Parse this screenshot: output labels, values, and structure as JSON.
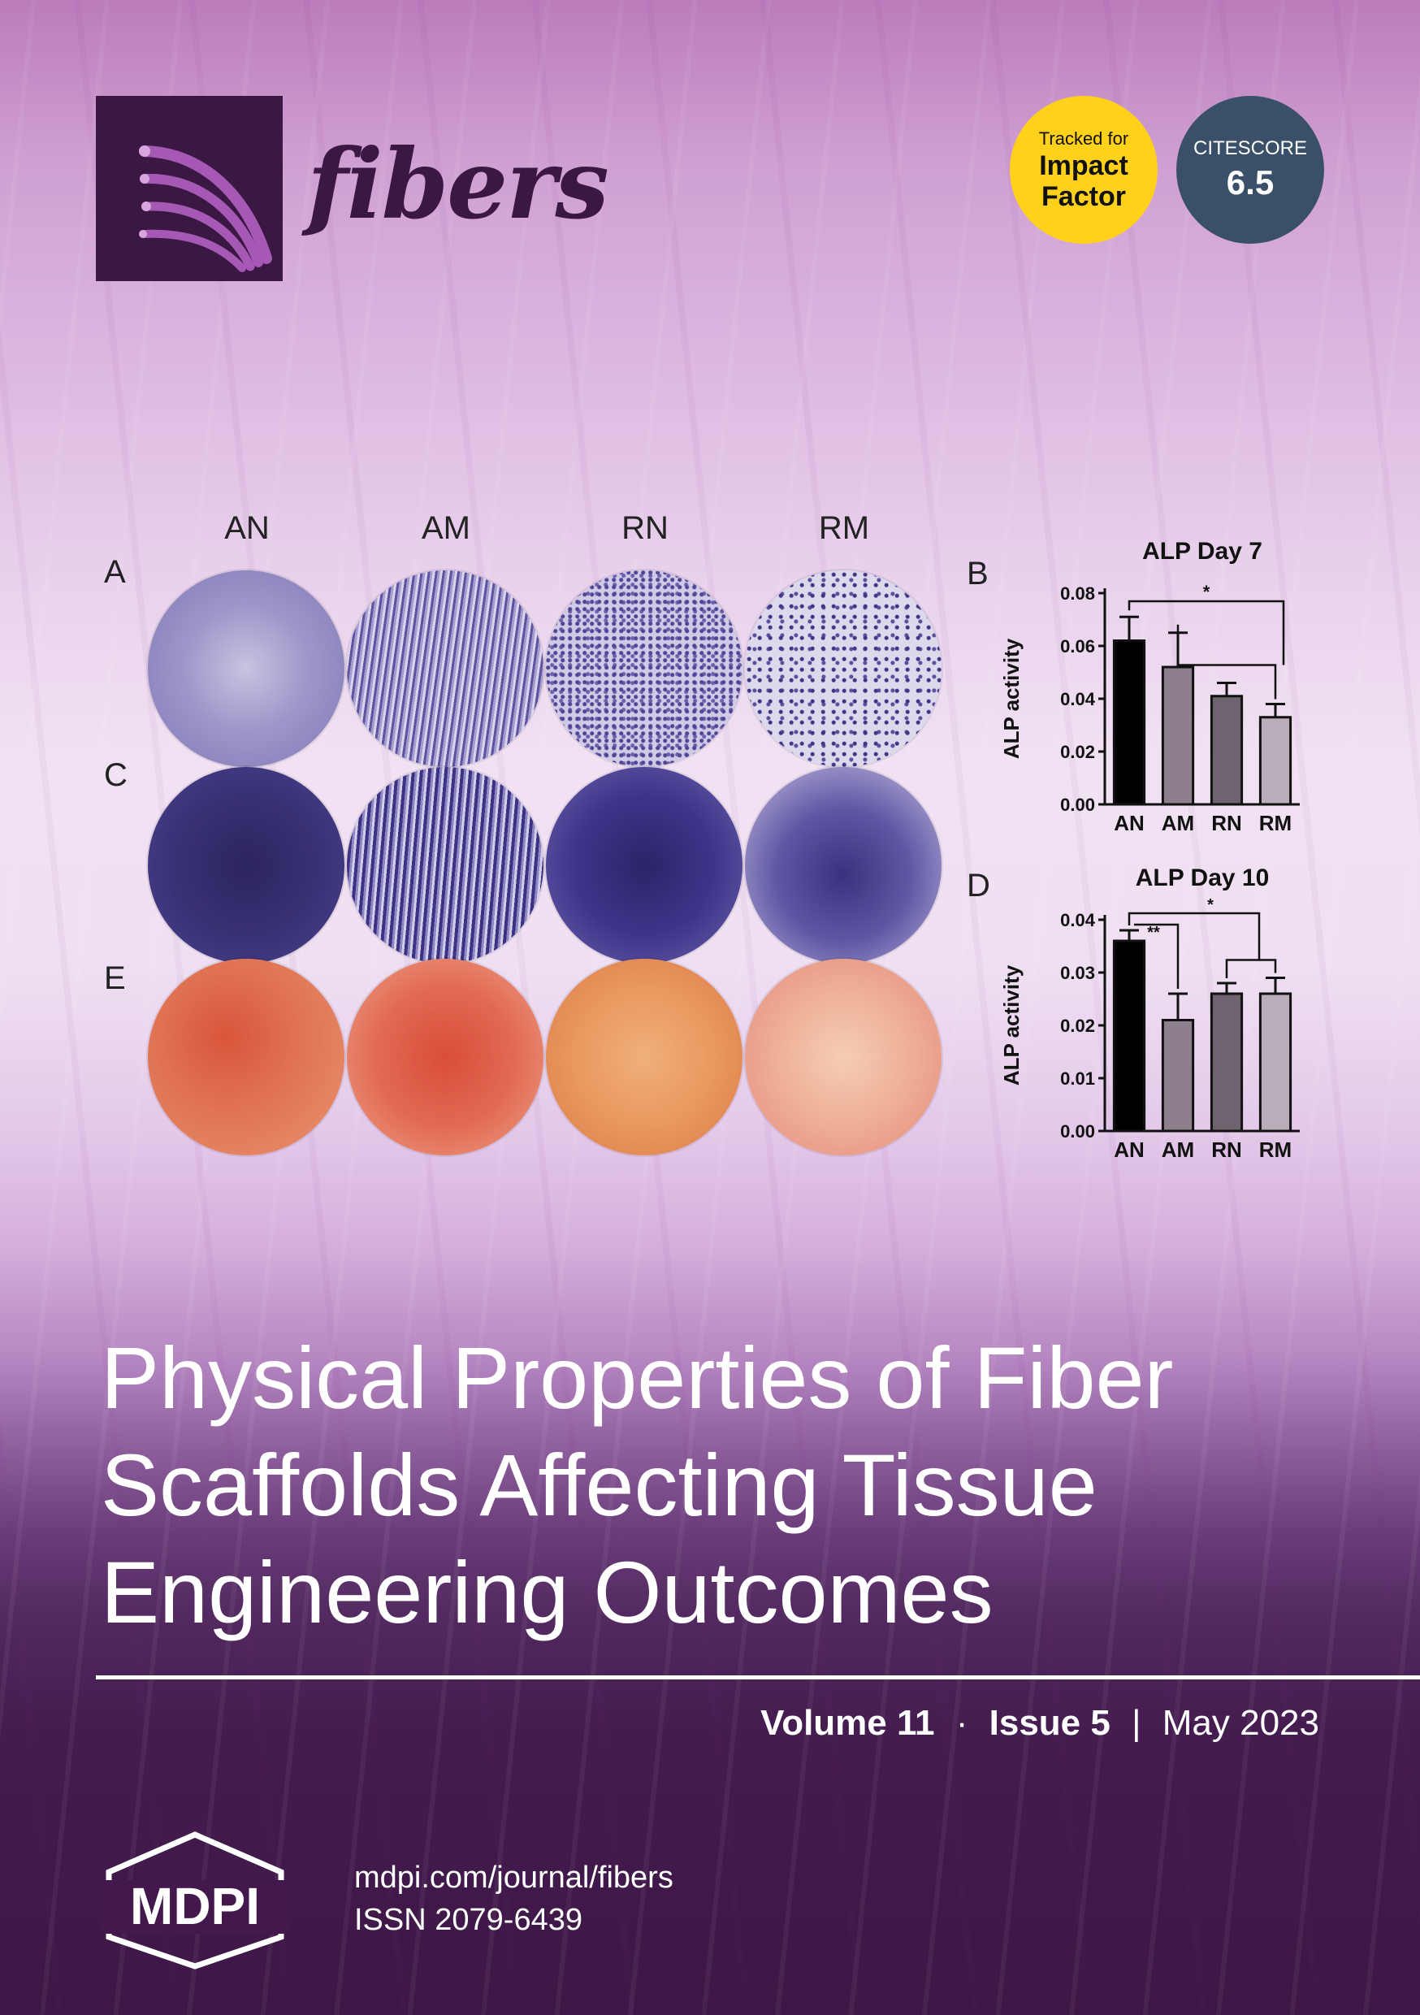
{
  "journal": {
    "name": "fibers",
    "badges": {
      "impact_line1": "Tracked for",
      "impact_line2": "Impact",
      "impact_line3": "Factor",
      "citescore_label": "CITESCORE",
      "citescore_value": "6.5"
    }
  },
  "figure": {
    "panel_letters": [
      "A",
      "B",
      "C",
      "D",
      "E"
    ],
    "column_labels": [
      "AN",
      "AM",
      "RN",
      "RM"
    ]
  },
  "chart_data": [
    {
      "type": "bar",
      "title": "ALP Day 7",
      "ylabel": "ALP activity",
      "categories": [
        "AN",
        "AM",
        "RN",
        "RM"
      ],
      "values": [
        0.062,
        0.052,
        0.041,
        0.033
      ],
      "errors": [
        0.009,
        0.013,
        0.005,
        0.005
      ],
      "ylim": [
        0,
        0.08
      ],
      "yticks": [
        "0.00",
        "0.02",
        "0.04",
        "0.06",
        "0.08"
      ],
      "significance": [
        "*"
      ],
      "colors": [
        "#000000",
        "#8e7f8d",
        "#6e6470",
        "#b9adba"
      ]
    },
    {
      "type": "bar",
      "title": "ALP Day 10",
      "ylabel": "ALP activity",
      "categories": [
        "AN",
        "AM",
        "RN",
        "RM"
      ],
      "values": [
        0.036,
        0.021,
        0.026,
        0.026
      ],
      "errors": [
        0.002,
        0.005,
        0.002,
        0.003
      ],
      "ylim": [
        0,
        0.04
      ],
      "yticks": [
        "0.00",
        "0.01",
        "0.02",
        "0.03",
        "0.04"
      ],
      "significance": [
        "**",
        "*"
      ],
      "colors": [
        "#000000",
        "#8e7f8d",
        "#6e6470",
        "#b9adba"
      ]
    }
  ],
  "article": {
    "title_lines": [
      "Physical Properties of Fiber",
      "Scaffolds Affecting Tissue",
      "Engineering Outcomes"
    ]
  },
  "issue": {
    "volume": "Volume 11",
    "dot": "·",
    "issue": "Issue 5",
    "divider": "|",
    "date": "May 2023"
  },
  "footer": {
    "publisher": "MDPI",
    "url": "mdpi.com/journal/fibers",
    "issn": "ISSN 2079-6439"
  }
}
